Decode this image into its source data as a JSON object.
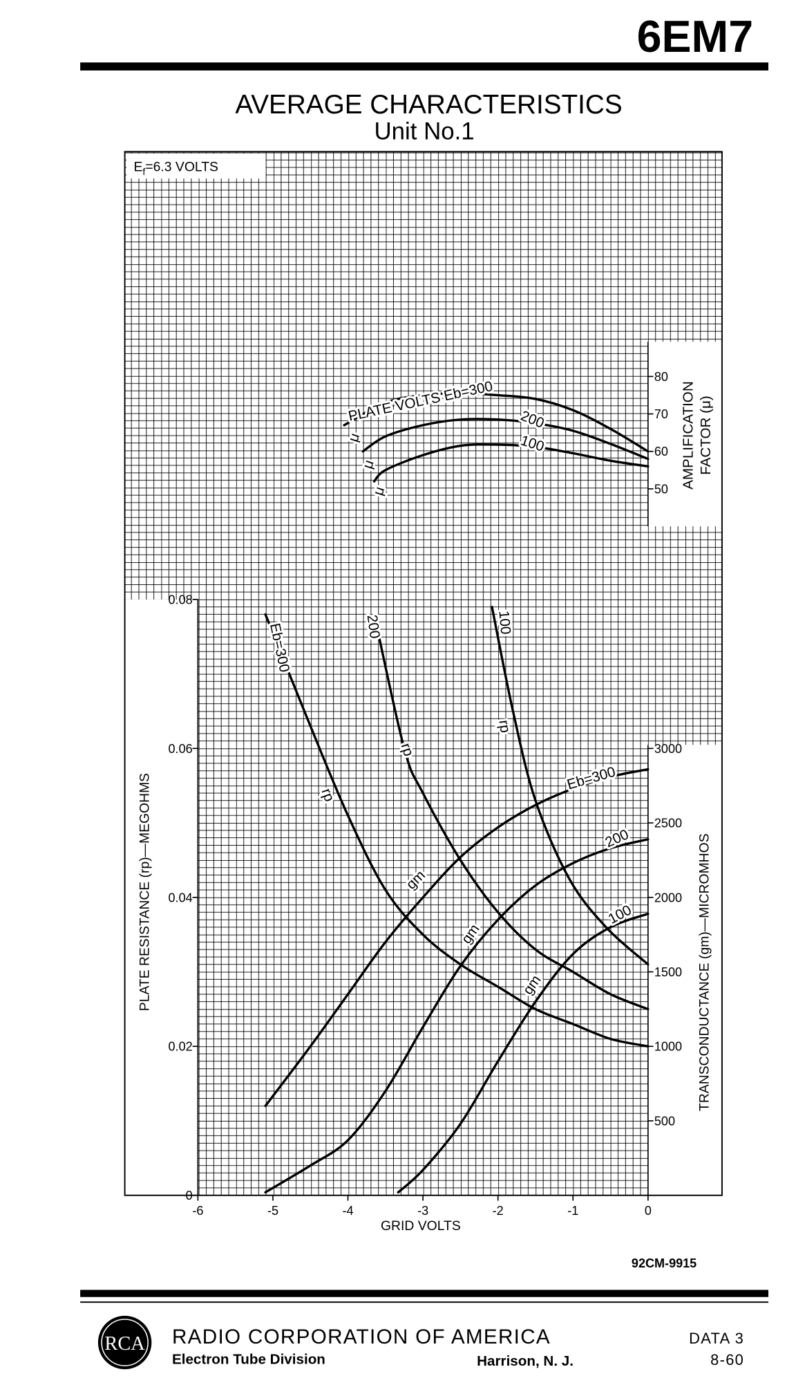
{
  "header": {
    "model": "6EM7",
    "title": "AVERAGE CHARACTERISTICS",
    "subtitle": "Unit No.1"
  },
  "chart_data": [
    {
      "type": "line",
      "annotation": {
        "symbol": "E",
        "subscript": "f",
        "text": "=6.3 VOLTS"
      },
      "ylabel": [
        "AMPLIFICATION",
        "FACTOR (μ)"
      ],
      "xlim": [
        -6,
        0
      ],
      "ylim": [
        50,
        80
      ],
      "yticks": [
        50,
        60,
        70,
        80
      ],
      "series": [
        {
          "name": "PLATE VOLTS Eb=300",
          "curve_label": "μ",
          "color": "#000000",
          "x": [
            -4.05,
            -3.5,
            -3,
            -2.5,
            -2,
            -1.5,
            -1,
            -0.5,
            0
          ],
          "values": [
            67,
            73,
            75,
            75.5,
            75,
            74,
            71,
            66,
            60
          ]
        },
        {
          "name": "200",
          "curve_label": "μ",
          "color": "#000000",
          "x": [
            -3.8,
            -3.5,
            -3,
            -2.5,
            -2,
            -1.5,
            -1,
            -0.5,
            0
          ],
          "values": [
            60,
            64,
            67,
            68.5,
            68.5,
            67.5,
            65.5,
            62,
            58
          ]
        },
        {
          "name": "100",
          "curve_label": "μ",
          "color": "#000000",
          "x": [
            -3.65,
            -3.5,
            -3,
            -2.5,
            -2,
            -1.5,
            -1,
            -0.5,
            0
          ],
          "values": [
            52,
            55,
            59,
            61.5,
            61.8,
            61.2,
            59.5,
            57.5,
            56
          ]
        }
      ]
    },
    {
      "type": "line",
      "xlabel": "GRID VOLTS",
      "xlim": [
        -6,
        0
      ],
      "xticks": [
        -6,
        -5,
        -4,
        -3,
        -2,
        -1,
        0
      ],
      "ylabel": "PLATE RESISTANCE (rp)—MEGOHMS",
      "ylim": [
        0,
        0.08
      ],
      "yticks": [
        0,
        0.02,
        0.04,
        0.06,
        0.08
      ],
      "y2label": "TRANSCONDUCTANCE (gm)—MICROMHOS",
      "y2lim": [
        0,
        4000
      ],
      "y2ticks": [
        500,
        1000,
        1500,
        2000,
        2500,
        3000
      ],
      "series": [
        {
          "name": "Eb=300",
          "curve_label": "rp",
          "color": "#000000",
          "x": [
            -5.1,
            -4.5,
            -4,
            -3.5,
            -3,
            -2.5,
            -2,
            -1.5,
            -1,
            -0.5,
            0
          ],
          "values": [
            0.078,
            0.063,
            0.051,
            0.041,
            0.035,
            0.031,
            0.028,
            0.025,
            0.023,
            0.021,
            0.02
          ]
        },
        {
          "name": "200",
          "curve_label": "rp",
          "color": "#000000",
          "x": [
            -3.65,
            -3.25,
            -3,
            -2.5,
            -2,
            -1.5,
            -1,
            -0.5,
            0
          ],
          "values": [
            0.078,
            0.06,
            0.054,
            0.045,
            0.038,
            0.033,
            0.03,
            0.027,
            0.025
          ]
        },
        {
          "name": "100",
          "curve_label": "rp",
          "color": "#000000",
          "x": [
            -2.08,
            -1.8,
            -1.5,
            -1.05,
            -0.56,
            0
          ],
          "values": [
            0.079,
            0.065,
            0.053,
            0.0425,
            0.036,
            0.031
          ]
        },
        {
          "name": "Eb=300",
          "curve_label": "gm",
          "color": "#000000",
          "axis": "y2",
          "x": [
            -5.1,
            -4.5,
            -4,
            -3.5,
            -3,
            -2.5,
            -2,
            -1.5,
            -1,
            -0.5,
            0
          ],
          "values": [
            600,
            1000,
            1350,
            1700,
            2000,
            2270,
            2470,
            2620,
            2730,
            2810,
            2860
          ]
        },
        {
          "name": "200",
          "curve_label": "gm",
          "color": "#000000",
          "axis": "y2",
          "x": [
            -5.1,
            -4.5,
            -4,
            -3.5,
            -3,
            -2.5,
            -2,
            -1.5,
            -1,
            -0.5,
            0
          ],
          "values": [
            20,
            200,
            370,
            700,
            1130,
            1540,
            1850,
            2080,
            2230,
            2330,
            2390
          ]
        },
        {
          "name": "100",
          "curve_label": "gm",
          "color": "#000000",
          "axis": "y2",
          "x": [
            -3.33,
            -3,
            -2.5,
            -2,
            -1.5,
            -1,
            -0.5,
            0
          ],
          "values": [
            20,
            170,
            480,
            900,
            1300,
            1620,
            1800,
            1890
          ]
        }
      ]
    }
  ],
  "footer": {
    "drawing_number": "92CM-9915",
    "logo": "RCA",
    "company": "RADIO CORPORATION OF AMERICA",
    "division": "Electron Tube Division",
    "location": "Harrison, N. J.",
    "sheet": "DATA 3",
    "date": "8-60"
  }
}
